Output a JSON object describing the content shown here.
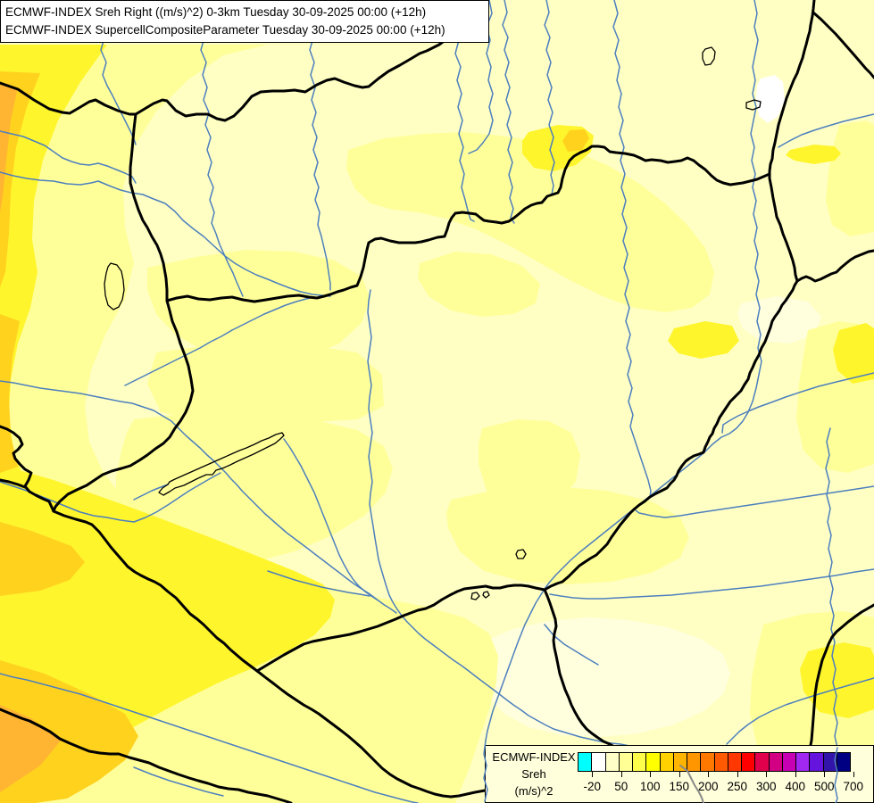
{
  "title_box": {
    "line1": "ECMWF-INDEX Sreh Right ((m/s)^2) 0-3km Tuesday 30-09-2025 00:00 (+12h)",
    "line2": "ECMWF-INDEX SupercellCompositeParameter Tuesday 30-09-2025 00:00 (+12h)"
  },
  "legend": {
    "label_line1": "ECMWF-INDEX",
    "label_line2": "Sreh",
    "label_line3": "(m/s)^2",
    "tick_labels": [
      "-20",
      "50",
      "100",
      "150",
      "200",
      "250",
      "300",
      "400",
      "500",
      "700"
    ],
    "colors": [
      "#00FFFF",
      "#FFFFFF",
      "#FFFFC8",
      "#FFFF96",
      "#FFFF4B",
      "#FFFF00",
      "#FFD200",
      "#FFB400",
      "#FF9600",
      "#FF7800",
      "#FF5A00",
      "#FF3700",
      "#FF0000",
      "#E1004B",
      "#D20082",
      "#C800B4",
      "#A028F0",
      "#6414DC",
      "#3214AA",
      "#000082"
    ]
  },
  "map_colors": {
    "base": "#FFFFC4",
    "pale": "#FFFFDE",
    "white": "#FFFFFF",
    "yellow_light": "#FFFF9A",
    "yellow": "#FFF52D",
    "gold": "#FFD21E",
    "amber": "#FFB432",
    "river": "#4D7FBE",
    "river_gray": "#8A8A8A",
    "border": "#000000"
  }
}
